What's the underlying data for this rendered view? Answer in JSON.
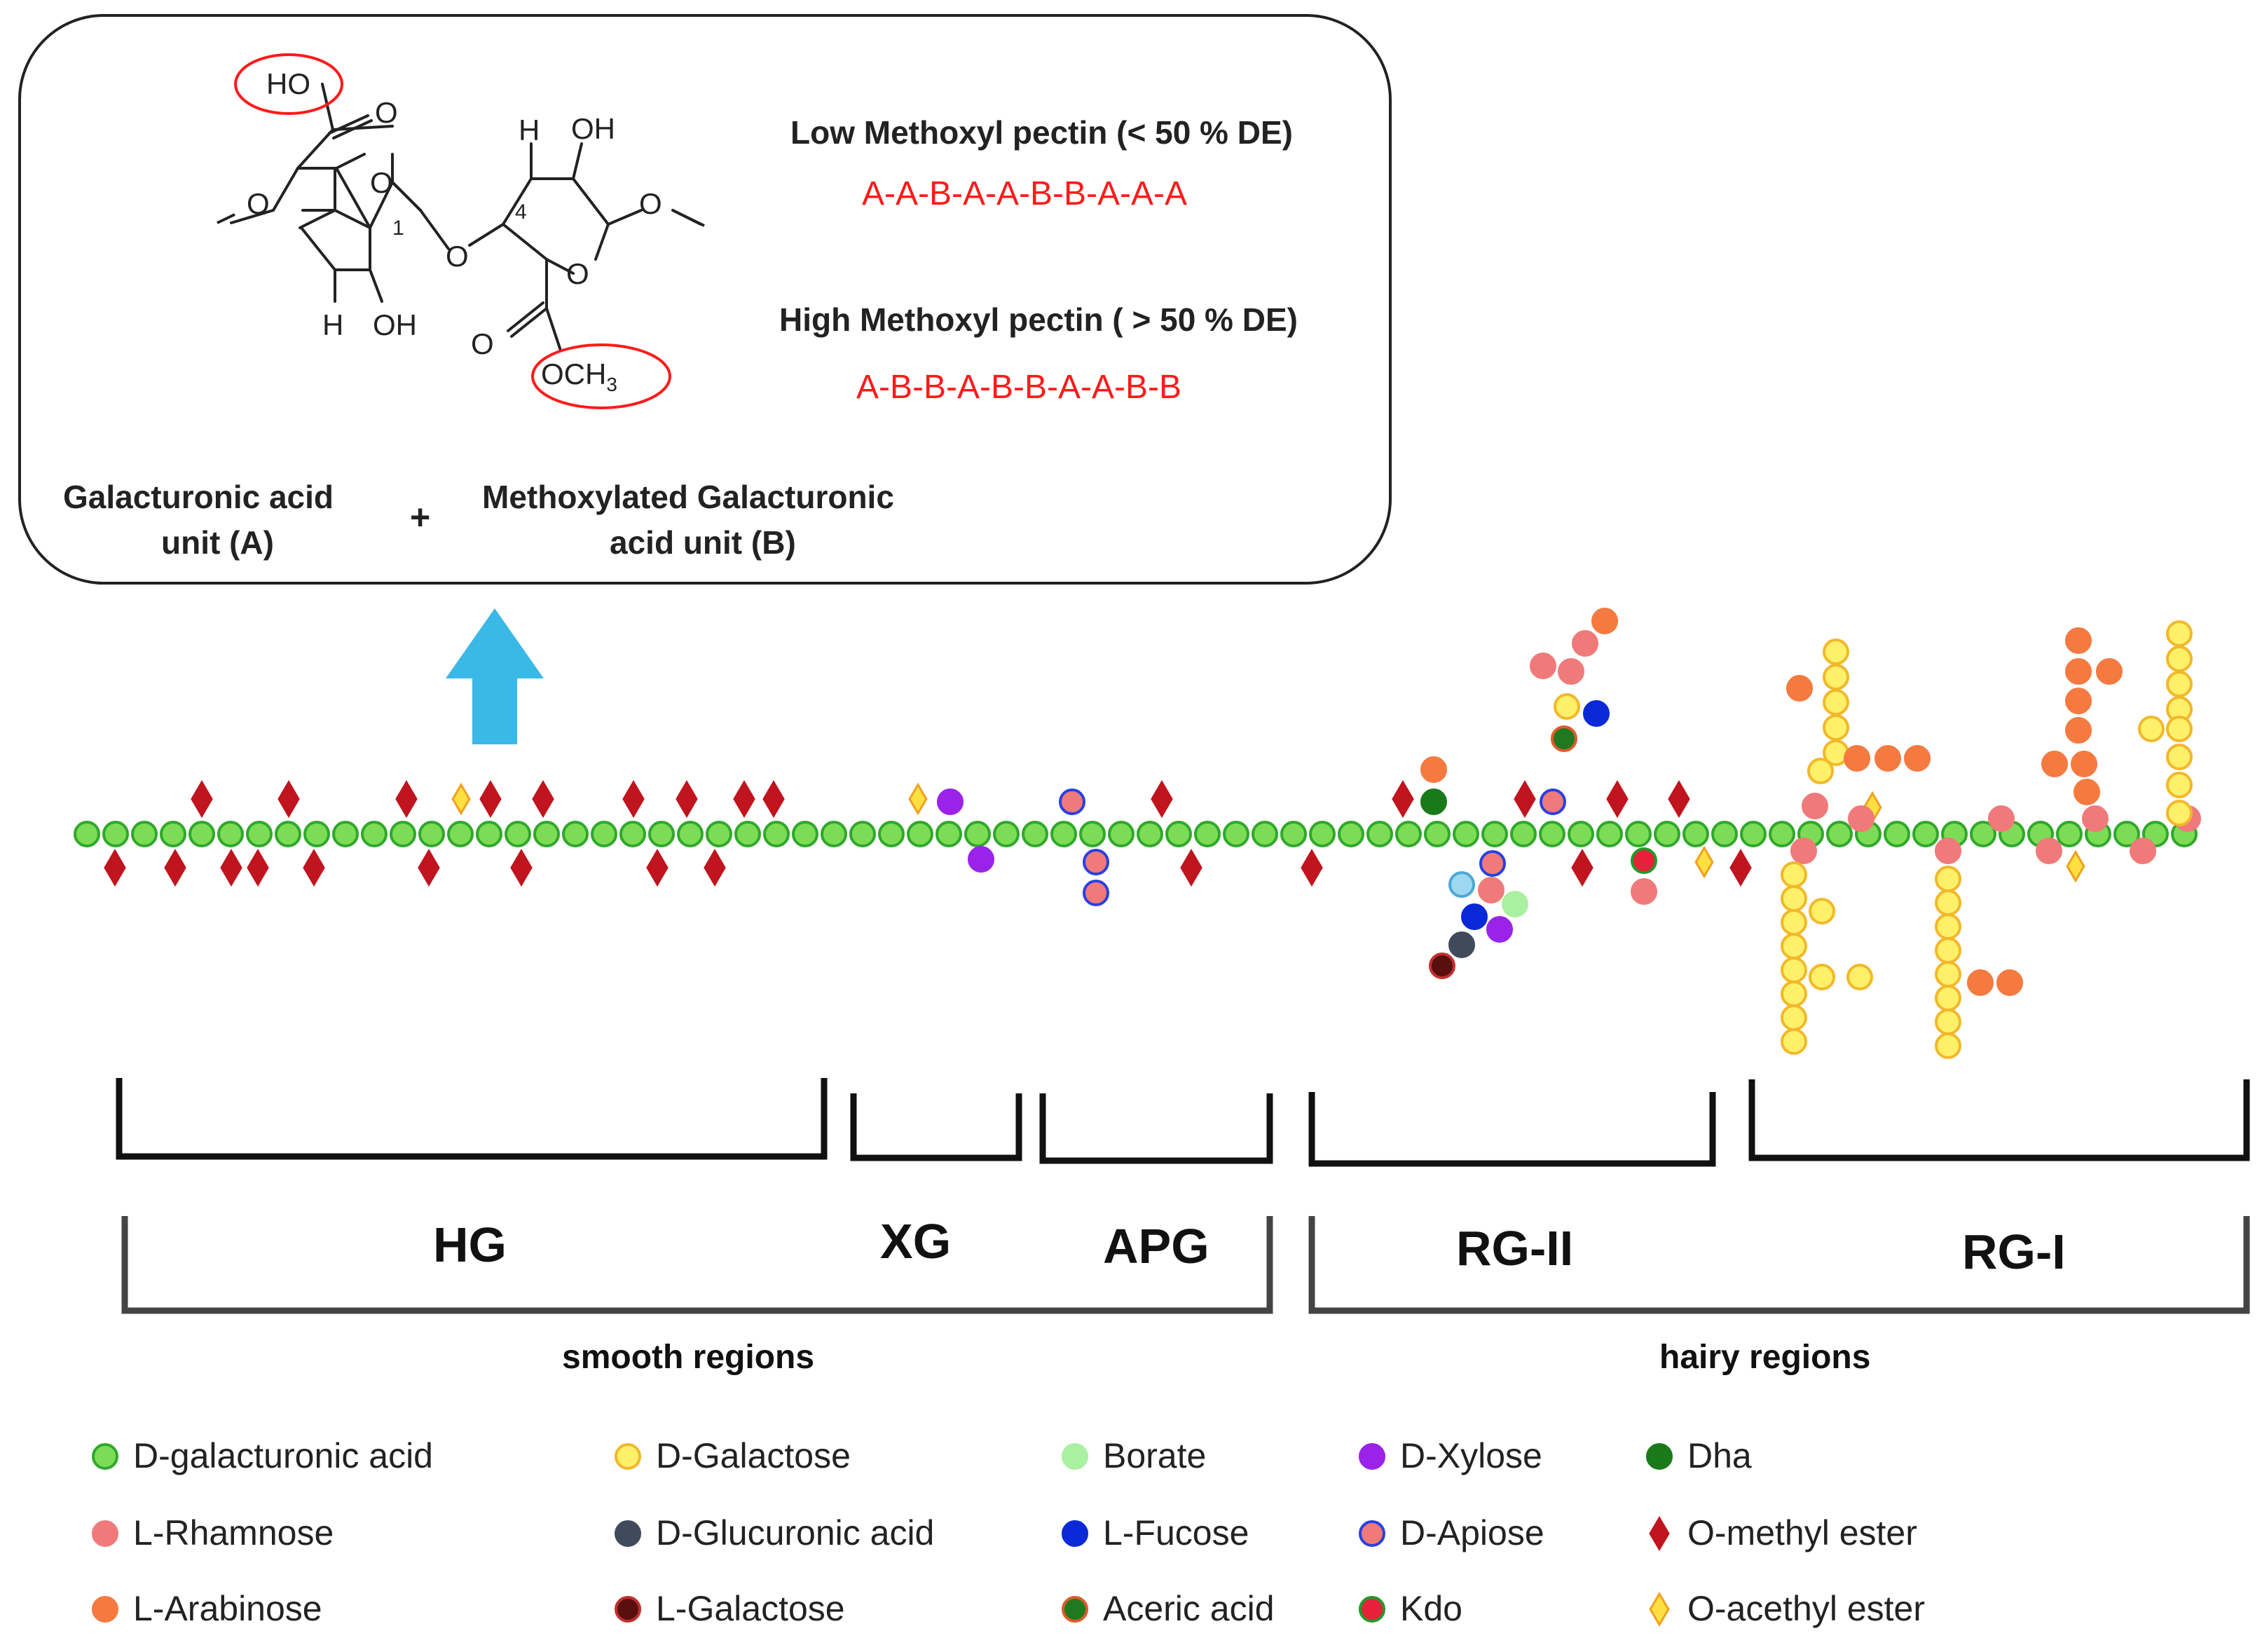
{
  "colors": {
    "galacturonic": "#7ddc55",
    "galacturonic_stroke": "#2fa82b",
    "rhamnose": "#f07a7a",
    "arabinose": "#f47a40",
    "galactose": "#fff06a",
    "galactose_stroke": "#f2b82a",
    "glucuronic": "#3f4a5a",
    "l_galactose": "#5a0f0f",
    "borate": "#a9f0a0",
    "fucose": "#0a2ad8",
    "aceric_fill": "#1f7a1f",
    "aceric_stroke": "#e05a2a",
    "xylose": "#9b22e8",
    "apiose_fill": "#f07a7a",
    "apiose_stroke": "#2a40e0",
    "kdo_fill": "#e8203a",
    "kdo_stroke": "#1f9a2a",
    "dha": "#1a7a1a",
    "methyl_ester": "#c0141e",
    "acetyl_fill": "#ffe040",
    "acetyl_stroke": "#f0a020",
    "red_text": "#ff1a1a",
    "arrow": "#3ab8e6"
  },
  "structure": {
    "ho_label": "HO",
    "o_keto_top": "O",
    "o_ring_left": "O",
    "o_left_chain": "O",
    "h_top": "H",
    "oh_top": "OH",
    "o_ring_right": "O",
    "o_right_chain": "O",
    "num_1": "1",
    "num_4": "4",
    "o_bridge": "O",
    "h_bottom": "H",
    "oh_bottom": "OH",
    "o_ester": "O",
    "och3_main": "OCH",
    "och3_sub": "3"
  },
  "pectin_types": {
    "low_title": "Low Methoxyl pectin (< 50 % DE)",
    "low_sequence": "A-A-B-A-A-B-B-A-A-A",
    "high_title": "High  Methoxyl pectin ( > 50 % DE)",
    "high_sequence": "A-B-B-A-B-B-A-A-B-B"
  },
  "units": {
    "unit_a_line1": "Galacturonic acid",
    "unit_a_line2": "unit (A)",
    "plus": "+",
    "unit_b_line1": "Methoxylated Galacturonic",
    "unit_b_line2": "acid unit (B)"
  },
  "regions": {
    "hg": "HG",
    "xg": "XG",
    "apg": "APG",
    "rg2": "RG-II",
    "rg1": "RG-I",
    "smooth": "smooth regions",
    "hairy": "hairy regions"
  },
  "legend": [
    {
      "label": "D-galacturonic acid",
      "icon": "circle-icon",
      "color": "galacturonic"
    },
    {
      "label": "L-Rhamnose",
      "icon": "circle-icon",
      "color": "rhamnose"
    },
    {
      "label": "L-Arabinose",
      "icon": "circle-icon",
      "color": "arabinose"
    },
    {
      "label": "D-Galactose",
      "icon": "circle-icon",
      "color": "galactose"
    },
    {
      "label": "D-Glucuronic acid",
      "icon": "circle-icon",
      "color": "glucuronic"
    },
    {
      "label": "L-Galactose",
      "icon": "circle-icon",
      "color": "l_galactose"
    },
    {
      "label": "Borate",
      "icon": "circle-icon",
      "color": "borate"
    },
    {
      "label": "L-Fucose",
      "icon": "circle-icon",
      "color": "fucose"
    },
    {
      "label": "Aceric acid",
      "icon": "circle-icon",
      "color": "aceric_fill"
    },
    {
      "label": "D-Xylose",
      "icon": "circle-icon",
      "color": "xylose"
    },
    {
      "label": "D-Apiose",
      "icon": "circle-icon",
      "color": "apiose_fill"
    },
    {
      "label": "Kdo",
      "icon": "circle-icon",
      "color": "kdo_fill"
    },
    {
      "label": "Dha",
      "icon": "circle-icon",
      "color": "dha"
    },
    {
      "label": "O-methyl ester",
      "icon": "diamond-icon",
      "color": "methyl_ester"
    },
    {
      "label": "O-acethyl ester",
      "icon": "diamond-icon",
      "color": "acetyl_fill"
    }
  ]
}
